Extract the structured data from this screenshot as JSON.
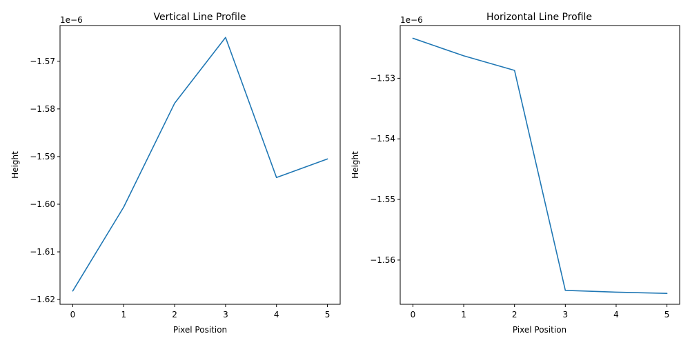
{
  "chart_data": [
    {
      "type": "line",
      "title": "Vertical Line Profile",
      "xlabel": "Pixel Position",
      "ylabel": "Height",
      "offset_label": "1e−6",
      "x": [
        0,
        1,
        2,
        3,
        4,
        5
      ],
      "series": [
        {
          "values": [
            -1.6182,
            -1.6006,
            -1.5788,
            -1.565,
            -1.5944,
            -1.5905
          ]
        }
      ],
      "xlim": [
        -0.25,
        5.25
      ],
      "ylim": [
        -1.621,
        -1.5625
      ],
      "xticks": [
        0,
        1,
        2,
        3,
        4,
        5
      ],
      "xtick_labels": [
        "0",
        "1",
        "2",
        "3",
        "4",
        "5"
      ],
      "yticks": [
        -1.62,
        -1.61,
        -1.6,
        -1.59,
        -1.58,
        -1.57
      ],
      "ytick_labels": [
        "−1.62",
        "−1.61",
        "−1.60",
        "−1.59",
        "−1.58",
        "−1.57"
      ],
      "line_color": "#1f77b4",
      "grid": false
    },
    {
      "type": "line",
      "title": "Horizontal Line Profile",
      "xlabel": "Pixel Position",
      "ylabel": "Height",
      "offset_label": "1e−6",
      "x": [
        0,
        1,
        2,
        3,
        4,
        5
      ],
      "series": [
        {
          "values": [
            -1.5234,
            -1.5263,
            -1.5287,
            -1.565,
            -1.5653,
            -1.5655
          ]
        }
      ],
      "xlim": [
        -0.25,
        5.25
      ],
      "ylim": [
        -1.5673,
        -1.5213
      ],
      "xticks": [
        0,
        1,
        2,
        3,
        4,
        5
      ],
      "xtick_labels": [
        "0",
        "1",
        "2",
        "3",
        "4",
        "5"
      ],
      "yticks": [
        -1.56,
        -1.55,
        -1.54,
        -1.53
      ],
      "ytick_labels": [
        "−1.56",
        "−1.55",
        "−1.54",
        "−1.53"
      ],
      "line_color": "#1f77b4",
      "grid": false
    }
  ]
}
